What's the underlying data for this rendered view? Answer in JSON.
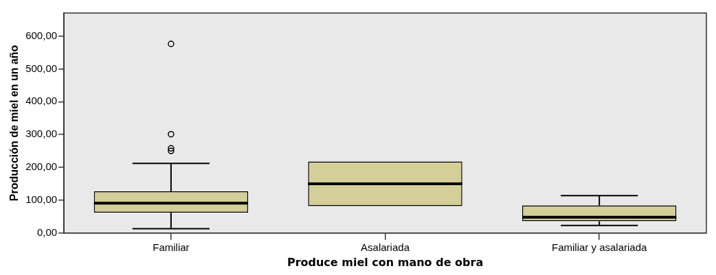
{
  "chart_data": {
    "type": "box",
    "xlabel": "Produce miel con mano de obra",
    "ylabel": "Producción de miel en un año",
    "categories": [
      "Familiar",
      "Asalariada",
      "Familiar y asalariada"
    ],
    "color": "#d4ce98",
    "boxes": [
      {
        "low": 13,
        "q1": 62,
        "median": 91,
        "q3": 127,
        "high": 212,
        "outliers": [
          250,
          258,
          301,
          576
        ]
      },
      {
        "low": 82,
        "q1": 82,
        "median": 150,
        "q3": 218,
        "high": 218
      },
      {
        "low": 23,
        "q1": 36,
        "median": 48,
        "q3": 84,
        "high": 114
      }
    ],
    "ylim": [
      0,
      670
    ],
    "yticks": [
      {
        "value": 0,
        "label": "0,00"
      },
      {
        "value": 100,
        "label": "100,00"
      },
      {
        "value": 200,
        "label": "200,00"
      },
      {
        "value": 300,
        "label": "300,00"
      },
      {
        "value": 400,
        "label": "400,00"
      },
      {
        "value": 500,
        "label": "500,00"
      },
      {
        "value": 600,
        "label": "600,00"
      }
    ],
    "grid": false,
    "legend": false
  }
}
